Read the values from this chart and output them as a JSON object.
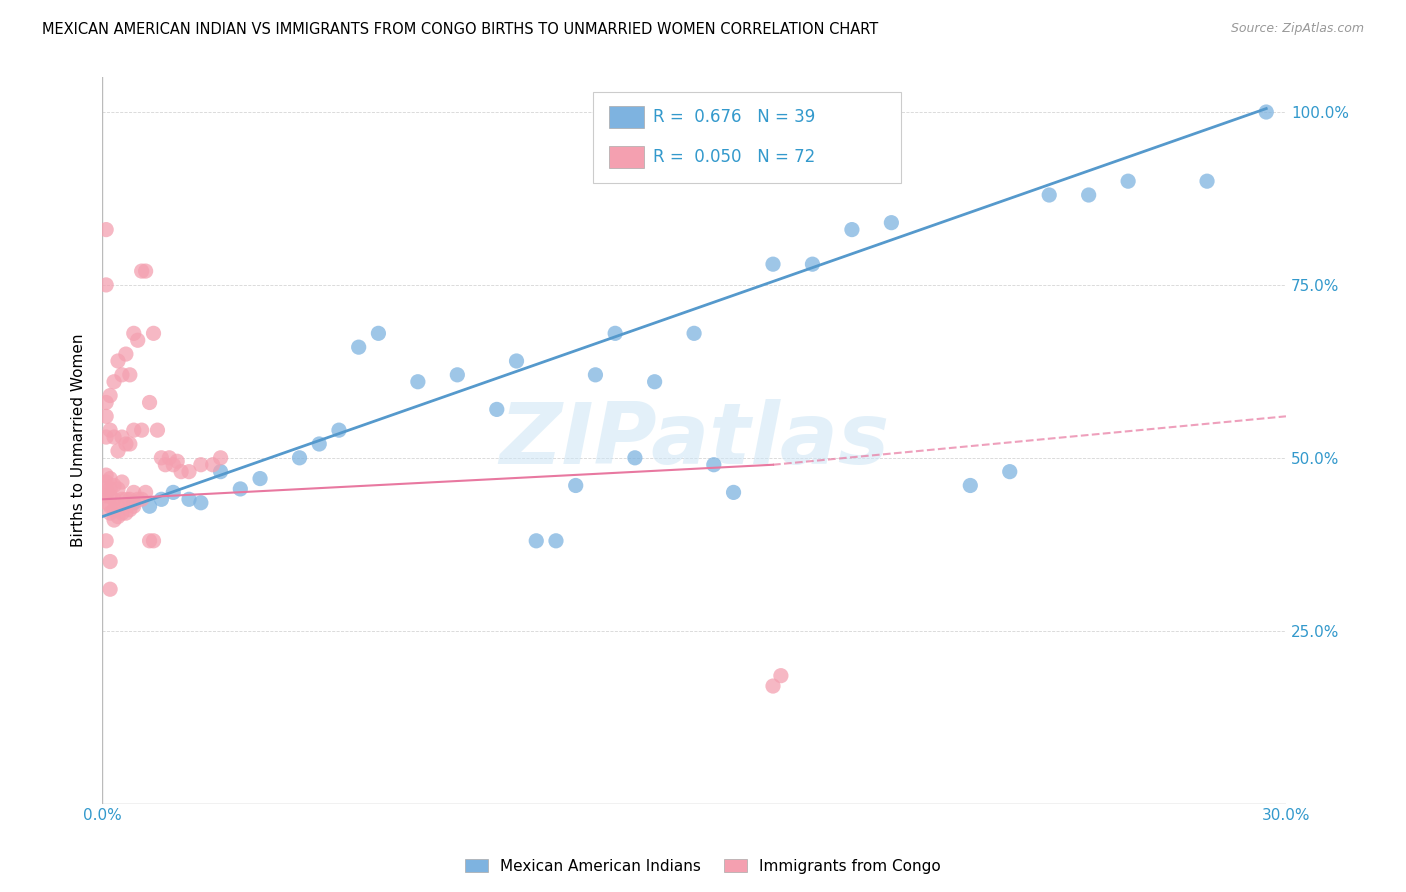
{
  "title": "MEXICAN AMERICAN INDIAN VS IMMIGRANTS FROM CONGO BIRTHS TO UNMARRIED WOMEN CORRELATION CHART",
  "source": "Source: ZipAtlas.com",
  "ylabel": "Births to Unmarried Women",
  "x_min": 0.0,
  "x_max": 0.3,
  "y_min": 0.0,
  "y_max": 1.05,
  "x_tick_pos": [
    0.0,
    0.05,
    0.1,
    0.15,
    0.2,
    0.25,
    0.3
  ],
  "x_tick_labels": [
    "0.0%",
    "",
    "",
    "",
    "",
    "",
    "30.0%"
  ],
  "y_tick_pos": [
    0.0,
    0.25,
    0.5,
    0.75,
    1.0
  ],
  "y_tick_labels": [
    "",
    "25.0%",
    "50.0%",
    "75.0%",
    "100.0%"
  ],
  "blue_color": "#7EB3E0",
  "pink_color": "#F4A0B0",
  "blue_line_color": "#5599CC",
  "pink_line_color": "#E878A0",
  "blue_R": 0.676,
  "blue_N": 39,
  "pink_R": 0.05,
  "pink_N": 72,
  "legend_label_blue": "Mexican American Indians",
  "legend_label_pink": "Immigrants from Congo",
  "watermark": "ZIPatlas",
  "blue_scatter_x": [
    0.008,
    0.012,
    0.015,
    0.018,
    0.022,
    0.025,
    0.03,
    0.035,
    0.04,
    0.05,
    0.055,
    0.06,
    0.065,
    0.07,
    0.08,
    0.09,
    0.1,
    0.105,
    0.11,
    0.115,
    0.12,
    0.125,
    0.13,
    0.135,
    0.14,
    0.15,
    0.155,
    0.16,
    0.17,
    0.18,
    0.19,
    0.2,
    0.22,
    0.23,
    0.24,
    0.25,
    0.26,
    0.28,
    0.295
  ],
  "blue_scatter_y": [
    0.435,
    0.43,
    0.44,
    0.45,
    0.44,
    0.435,
    0.48,
    0.455,
    0.47,
    0.5,
    0.52,
    0.54,
    0.66,
    0.68,
    0.61,
    0.62,
    0.57,
    0.64,
    0.38,
    0.38,
    0.46,
    0.62,
    0.68,
    0.5,
    0.61,
    0.68,
    0.49,
    0.45,
    0.78,
    0.78,
    0.83,
    0.84,
    0.46,
    0.48,
    0.88,
    0.88,
    0.9,
    0.9,
    1.0
  ],
  "pink_scatter_x": [
    0.001,
    0.001,
    0.001,
    0.001,
    0.001,
    0.001,
    0.001,
    0.001,
    0.002,
    0.002,
    0.002,
    0.002,
    0.002,
    0.002,
    0.002,
    0.003,
    0.003,
    0.003,
    0.003,
    0.003,
    0.003,
    0.004,
    0.004,
    0.004,
    0.004,
    0.004,
    0.005,
    0.005,
    0.005,
    0.005,
    0.005,
    0.006,
    0.006,
    0.006,
    0.006,
    0.007,
    0.007,
    0.007,
    0.007,
    0.008,
    0.008,
    0.008,
    0.008,
    0.009,
    0.009,
    0.01,
    0.01,
    0.01,
    0.011,
    0.011,
    0.012,
    0.012,
    0.013,
    0.013,
    0.014,
    0.015,
    0.016,
    0.017,
    0.018,
    0.019,
    0.02,
    0.022,
    0.025,
    0.028,
    0.03,
    0.17,
    0.172,
    0.001,
    0.001,
    0.001,
    0.002,
    0.002
  ],
  "pink_scatter_y": [
    0.435,
    0.445,
    0.455,
    0.465,
    0.475,
    0.53,
    0.56,
    0.58,
    0.42,
    0.43,
    0.445,
    0.455,
    0.47,
    0.54,
    0.59,
    0.41,
    0.425,
    0.44,
    0.46,
    0.53,
    0.61,
    0.415,
    0.43,
    0.455,
    0.51,
    0.64,
    0.42,
    0.44,
    0.465,
    0.53,
    0.62,
    0.42,
    0.44,
    0.52,
    0.65,
    0.425,
    0.44,
    0.52,
    0.62,
    0.43,
    0.45,
    0.54,
    0.68,
    0.44,
    0.67,
    0.44,
    0.54,
    0.77,
    0.45,
    0.77,
    0.38,
    0.58,
    0.38,
    0.68,
    0.54,
    0.5,
    0.49,
    0.5,
    0.49,
    0.495,
    0.48,
    0.48,
    0.49,
    0.49,
    0.5,
    0.17,
    0.185,
    0.83,
    0.75,
    0.38,
    0.35,
    0.31
  ]
}
